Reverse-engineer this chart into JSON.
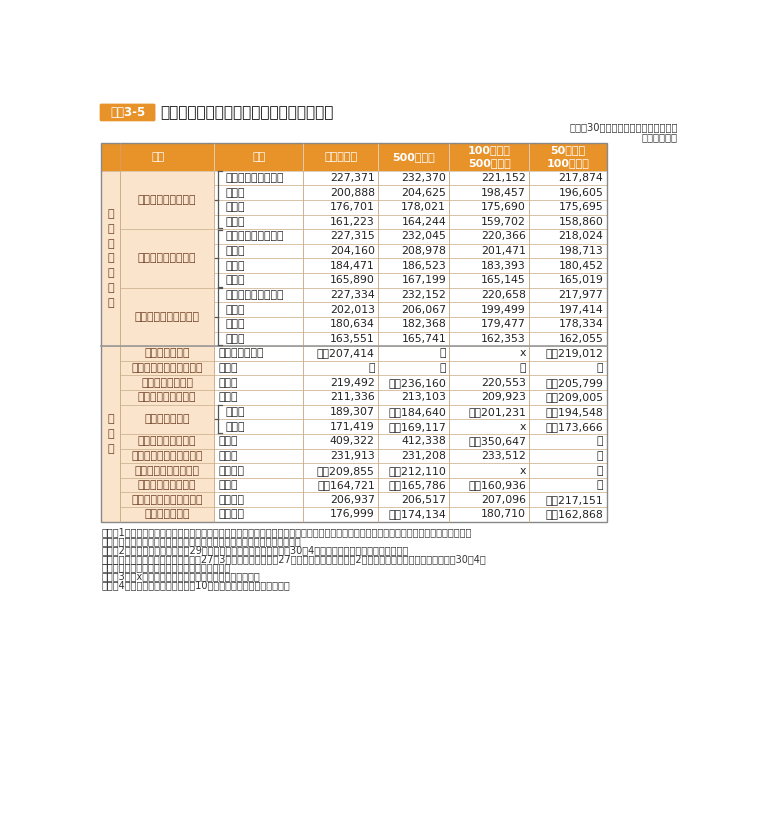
{
  "title": "民間の職種別、学歴別、企業規模別初任給",
  "label_tag": "資料3-5",
  "subtitle1": "（平成30年職種別民間給与実態調査）",
  "subtitle2": "（単位：円）",
  "section1_label": "事\n務\n・\n技\n術\n関\n係",
  "section2_label": "そ\nの\n他",
  "rows": [
    {
      "group": "新　卒　事　務　員",
      "brace": true,
      "section": 1,
      "sub": [
        {
          "edu": "大学院修士課程修了",
          "total": "227,371",
          "s500": "232,370",
          "s100_500": "221,152",
          "s50_100": "217,874"
        },
        {
          "edu": "大学卒",
          "total": "200,888",
          "s500": "204,625",
          "s100_500": "198,457",
          "s50_100": "196,605"
        },
        {
          "edu": "短大卒",
          "total": "176,701",
          "s500": "178,021",
          "s100_500": "175,690",
          "s50_100": "175,695"
        },
        {
          "edu": "高校卒",
          "total": "161,223",
          "s500": "164,244",
          "s100_500": "159,702",
          "s50_100": "158,860"
        }
      ]
    },
    {
      "group": "新　卒　技　術　者",
      "brace": true,
      "section": 1,
      "sub": [
        {
          "edu": "大学院修士課程修了",
          "total": "227,315",
          "s500": "232,045",
          "s100_500": "220,366",
          "s50_100": "218,024"
        },
        {
          "edu": "大学卒",
          "total": "204,160",
          "s500": "208,978",
          "s100_500": "201,471",
          "s50_100": "198,713"
        },
        {
          "edu": "短大卒",
          "total": "184,471",
          "s500": "186,523",
          "s100_500": "183,393",
          "s50_100": "180,452"
        },
        {
          "edu": "高校卒",
          "total": "165,890",
          "s500": "167,199",
          "s100_500": "165,145",
          "s50_100": "165,019"
        }
      ]
    },
    {
      "group": "新卒事務員・技術者計",
      "brace": true,
      "section": 1,
      "sub": [
        {
          "edu": "大学院修士課程修了",
          "total": "227,334",
          "s500": "232,152",
          "s100_500": "220,658",
          "s50_100": "217,977"
        },
        {
          "edu": "大学卒",
          "total": "202,013",
          "s500": "206,067",
          "s100_500": "199,499",
          "s50_100": "197,414"
        },
        {
          "edu": "短大卒",
          "total": "180,634",
          "s500": "182,368",
          "s100_500": "179,477",
          "s50_100": "178,334"
        },
        {
          "edu": "高校卒",
          "total": "163,551",
          "s500": "165,741",
          "s100_500": "162,353",
          "s50_100": "162,055"
        }
      ]
    },
    {
      "group": "新　卒　船　員",
      "brace": false,
      "section": 2,
      "sub": [
        {
          "edu": "海上技術学校卒",
          "total": "＊　207,414",
          "s500": "－",
          "s100_500": "x",
          "s50_100": "＊　219,012"
        }
      ]
    },
    {
      "group": "新　卒　大　学　助　教",
      "brace": false,
      "section": 2,
      "sub": [
        {
          "edu": "大学卒",
          "total": "－",
          "s500": "－",
          "s100_500": "－",
          "s50_100": "－"
        }
      ]
    },
    {
      "group": "新卒高等学校教諭",
      "brace": false,
      "section": 2,
      "sub": [
        {
          "edu": "大学卒",
          "total": "219,492",
          "s500": "＊　236,160",
          "s100_500": "220,553",
          "s50_100": "＊　205,799"
        }
      ]
    },
    {
      "group": "新　卒　研　究　員",
      "brace": false,
      "section": 2,
      "sub": [
        {
          "edu": "大学卒",
          "total": "211,336",
          "s500": "213,103",
          "s100_500": "209,923",
          "s50_100": "＊　209,005"
        }
      ]
    },
    {
      "group": "新卒研究補助員",
      "brace": true,
      "section": 2,
      "sub": [
        {
          "edu": "短大卒",
          "total": "189,307",
          "s500": "＊　184,640",
          "s100_500": "＊　201,231",
          "s50_100": "＊　194,548"
        },
        {
          "edu": "高校卒",
          "total": "171,419",
          "s500": "＊　169,117",
          "s100_500": "x",
          "s50_100": "＊　173,666"
        }
      ]
    },
    {
      "group": "準　新　卒　医　師",
      "brace": false,
      "section": 2,
      "sub": [
        {
          "edu": "大学卒",
          "total": "409,322",
          "s500": "412,338",
          "s100_500": "＊　350,647",
          "s50_100": "－"
        }
      ]
    },
    {
      "group": "準　新　卒　薬　剤　師",
      "brace": false,
      "section": 2,
      "sub": [
        {
          "edu": "大学卒",
          "total": "231,913",
          "s500": "231,208",
          "s100_500": "233,512",
          "s50_100": "－"
        }
      ]
    },
    {
      "group": "準新卒診療放射線技師",
      "brace": false,
      "section": 2,
      "sub": [
        {
          "edu": "養成所卒",
          "total": "＊　209,855",
          "s500": "＊　212,110",
          "s100_500": "x",
          "s50_100": "－"
        }
      ]
    },
    {
      "group": "新　卒　栄　養　士",
      "brace": false,
      "section": 2,
      "sub": [
        {
          "edu": "短大卒",
          "total": "＊　164,721",
          "s500": "＊　165,786",
          "s100_500": "＊　160,936",
          "s50_100": "－"
        }
      ]
    },
    {
      "group": "準　新　卒　看　護　師",
      "brace": false,
      "section": 2,
      "sub": [
        {
          "edu": "養成所卒",
          "total": "206,937",
          "s500": "206,517",
          "s100_500": "207,096",
          "s50_100": "＊　217,151"
        }
      ]
    },
    {
      "group": "準新卒准看護師",
      "brace": false,
      "section": 2,
      "sub": [
        {
          "edu": "養成所卒",
          "total": "176,999",
          "s500": "＊　174,134",
          "s100_500": "180,710",
          "s50_100": "＊　162,868"
        }
      ]
    }
  ],
  "notes": [
    "（注）1　金額は、基本給のほか事業所の従業員に一律に支給される給与を含めた額（採用のある事業所の平均）であり、時間外手当、家族",
    "　　　　手当、通勤手当等、特定の者にのみ支給される給与は除いている。",
    "　　　2　「準新卒」とは、平成29年度中に資格免許を取得し、平成30年4月までの間に採用された者をいう。",
    "　　　　なお、医師については、平成27年3月大学卒業後、平成27年度中に免許を取得し、2年間の臨床研修を修了した後、平成30年4月",
    "　　　　までの間に採用された者に限っている。",
    "　　　3　「x」は、調査事業所が１事業所の場合である。",
    "　　　4　「＊」は、調査事業所が10事業所以下であることを示す。"
  ],
  "orange_dark": "#E8922A",
  "orange_light": "#FAE5CC",
  "text_dark": "#222222",
  "text_brown": "#6B3A1F",
  "border_color": "#C8A882"
}
